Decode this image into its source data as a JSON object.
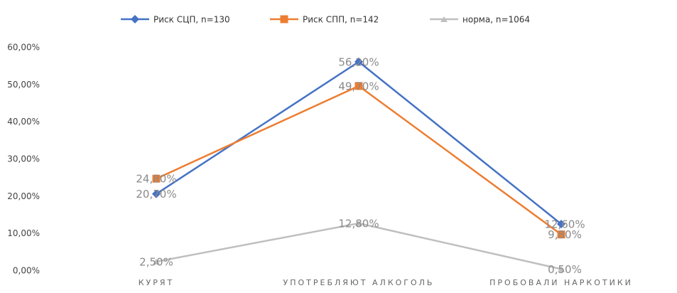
{
  "chart_data": {
    "type": "line",
    "categories": [
      "КУРЯТ",
      "УПОТРЕБЛЯЮТ АЛКОГОЛЬ",
      "ПРОБОВАЛИ НАРКОТИКИ"
    ],
    "series": [
      {
        "name": "Риск СЦП, n=130",
        "color": "#4472c4",
        "values": [
          20.7,
          56.2,
          12.6
        ],
        "value_labels": [
          "20,70%",
          "56,20%",
          "12,60%"
        ]
      },
      {
        "name": "Риск СПП, n=142",
        "color": "#ed7d31",
        "values": [
          24.8,
          49.7,
          9.8
        ],
        "value_labels": [
          "24,80%",
          "49,70%",
          "9,80%"
        ]
      },
      {
        "name": "норма, n=1064",
        "color": "#bfbfbf",
        "values": [
          2.5,
          12.8,
          0.5
        ],
        "value_labels": [
          "2,50%",
          "12,80%",
          "0,50%"
        ]
      }
    ],
    "ylim": [
      0,
      60
    ],
    "yticks": [
      {
        "value": 0,
        "label": "0,00%"
      },
      {
        "value": 10,
        "label": "10,00%"
      },
      {
        "value": 20,
        "label": "20,00%"
      },
      {
        "value": 30,
        "label": "30,00%"
      },
      {
        "value": 40,
        "label": "40,00%"
      },
      {
        "value": 50,
        "label": "50,00%"
      },
      {
        "value": 60,
        "label": "60,00%"
      }
    ],
    "grid": false,
    "legend": "top"
  }
}
